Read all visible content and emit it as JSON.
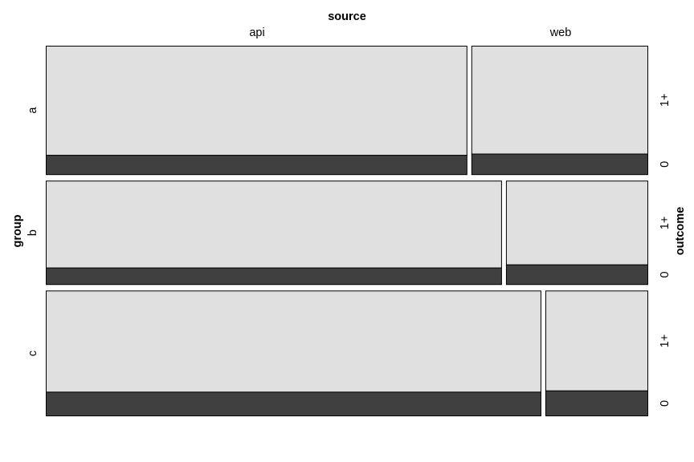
{
  "chart_data": {
    "type": "mosaic",
    "title": "",
    "row_variable": "group",
    "column_variable": "source",
    "fill_variable": "outcome",
    "rows": [
      "a",
      "b",
      "c"
    ],
    "columns": [
      "api",
      "web"
    ],
    "fill_levels": [
      "1+",
      "0"
    ],
    "colors": {
      "1+": "#e0e0e0",
      "0": "#404040"
    },
    "row_proportions": [
      0.36,
      0.29,
      0.35
    ],
    "column_proportions_within_row": {
      "a": {
        "api": 0.705,
        "web": 0.295
      },
      "b": {
        "api": 0.763,
        "web": 0.237
      },
      "c": {
        "api": 0.829,
        "web": 0.171
      }
    },
    "outcome_zero_share": {
      "a": {
        "api": 0.15,
        "web": 0.16
      },
      "b": {
        "api": 0.16,
        "web": 0.19
      },
      "c": {
        "api": 0.19,
        "web": 0.2
      }
    }
  }
}
